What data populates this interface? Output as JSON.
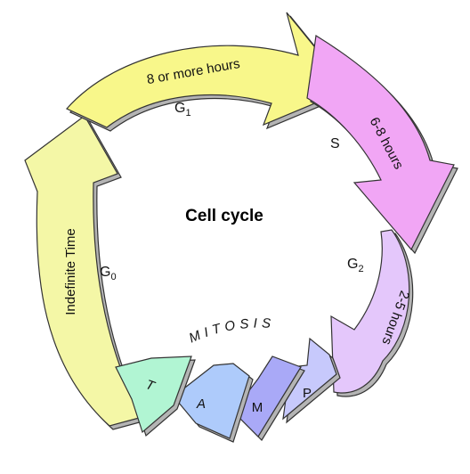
{
  "title": "Cell cycle",
  "colors": {
    "g1": "#f8f78a",
    "s": "#f1a6f5",
    "g2": "#e4c7fb",
    "p": "#c7c9fc",
    "m": "#a9a9f7",
    "a": "#aecbfb",
    "t": "#b1f5d3",
    "g0": "#f4f7a6",
    "outline": "#333333",
    "shadow": "#b4b4b4"
  },
  "phases": {
    "g1": {
      "label": "G",
      "sub": "1",
      "duration": "8 or more hours"
    },
    "s": {
      "label": "S",
      "duration": "6-8 hours"
    },
    "g2": {
      "label": "G",
      "sub": "2",
      "duration": "2-5 hours"
    },
    "g0": {
      "label": "G",
      "sub": "0",
      "duration": "Indefinite Time"
    }
  },
  "mitosis": {
    "label": "MITOSIS",
    "stages": [
      "P",
      "M",
      "A",
      "T"
    ]
  }
}
